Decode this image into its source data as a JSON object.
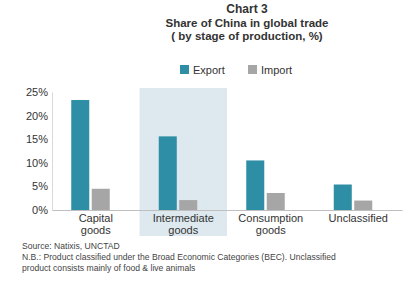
{
  "chart_data": {
    "type": "bar",
    "title": "Chart 3",
    "subtitle": [
      "Share of China in global trade",
      "( by stage of production, %)"
    ],
    "categories": [
      "Capital goods",
      "Intermediate goods",
      "Consumption goods",
      "Unclassified"
    ],
    "series": [
      {
        "name": "Export",
        "color": "#2e8ea6",
        "values": [
          23.3,
          15.6,
          10.5,
          5.4
        ]
      },
      {
        "name": "Import",
        "color": "#a6a6a6",
        "values": [
          4.5,
          2.1,
          3.6,
          2.0
        ]
      }
    ],
    "ylim": [
      0,
      25
    ],
    "yticks": [
      {
        "value": 0,
        "label": "0%"
      },
      {
        "value": 5,
        "label": "5%"
      },
      {
        "value": 10,
        "label": "10%"
      },
      {
        "value": 15,
        "label": "15%"
      },
      {
        "value": 20,
        "label": "20%"
      },
      {
        "value": 25,
        "label": "25%"
      }
    ],
    "legend": "top",
    "grid": false,
    "annotations": [
      "Source: Natixis, UNCTAD",
      "N.B.: Product classified under the Broad Economic Categories (BEC). Unclassified",
      "product consists mainly of food & live animals"
    ]
  }
}
